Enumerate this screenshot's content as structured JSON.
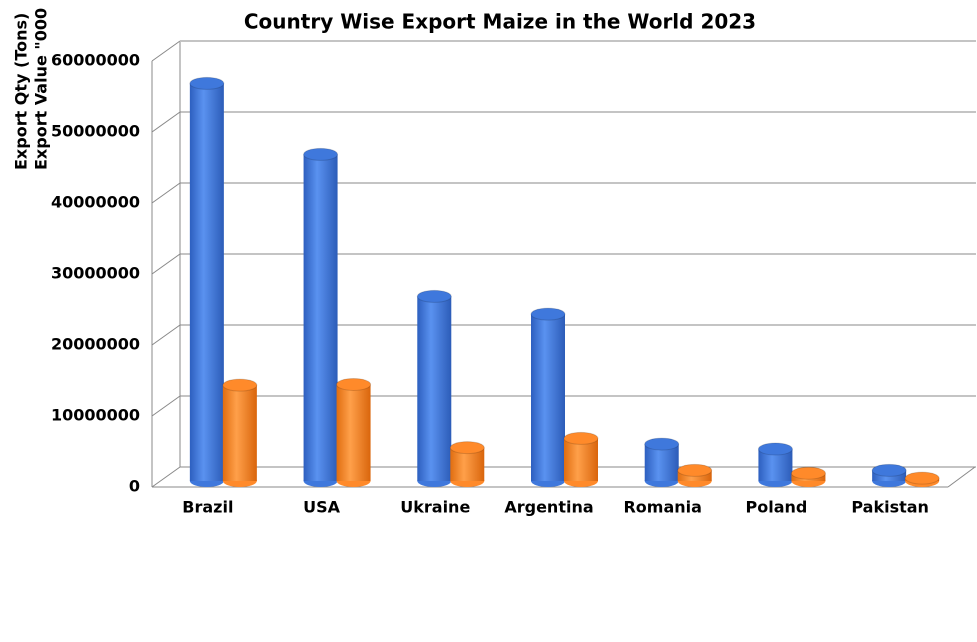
{
  "chart_data": {
    "type": "bar3d",
    "title": "Country Wise Export Maize in the World 2023",
    "y_label_lines": [
      "Export Qty (Tons)",
      "Export Value \"000"
    ],
    "categories": [
      "Brazil",
      "USA",
      "Ukraine",
      "Argentina",
      "Romania",
      "Poland",
      "Pakistan"
    ],
    "series": [
      {
        "color": "#3f78dc",
        "values": [
          56000000,
          46000000,
          26000000,
          23500000,
          5200000,
          4500000,
          1500000
        ]
      },
      {
        "color": "#ff8a2a",
        "values": [
          13500000,
          13600000,
          4700000,
          6000000,
          1500000,
          1100000,
          400000
        ]
      }
    ],
    "ylim": [
      0,
      60000000
    ],
    "yticks": [
      0,
      10000000,
      20000000,
      30000000,
      40000000,
      50000000,
      60000000
    ],
    "grid": true
  }
}
